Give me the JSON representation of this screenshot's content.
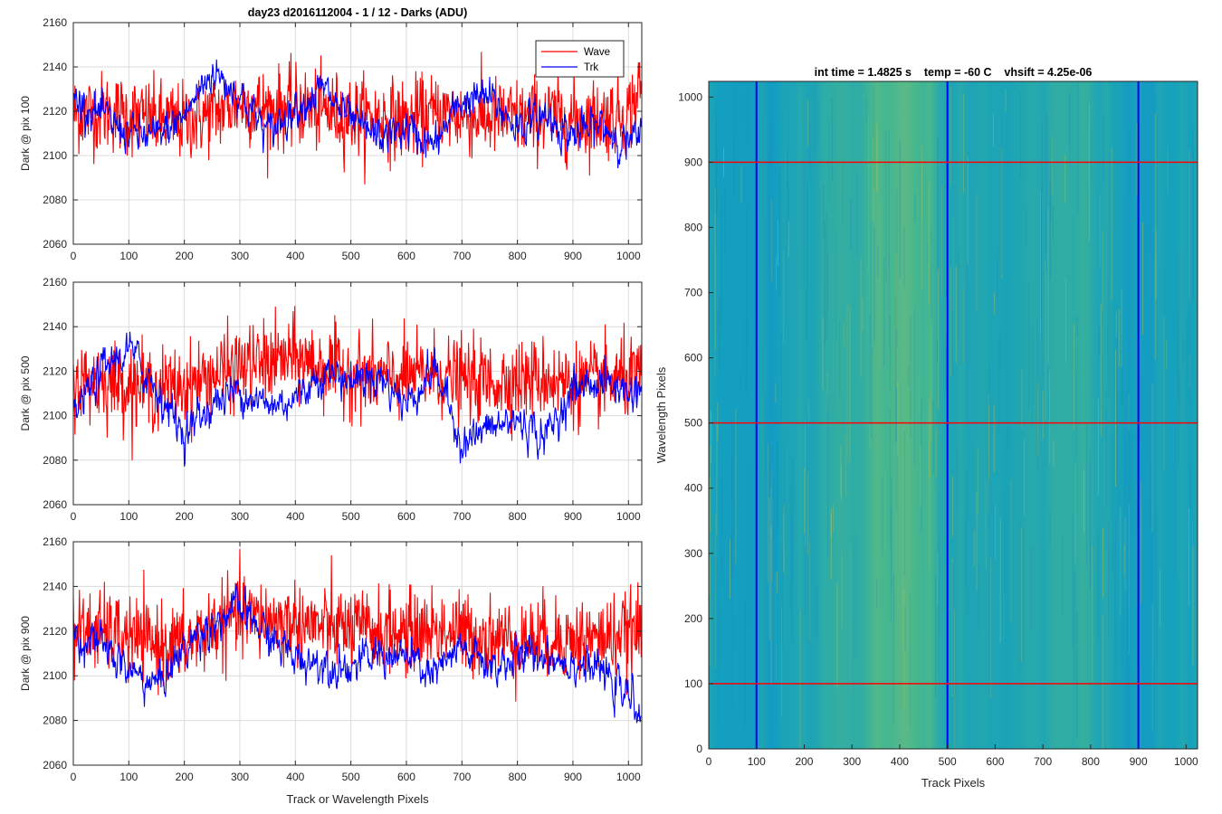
{
  "figure_title": "day23 d2016112004 - 1 / 12 - Darks (ADU)",
  "heatmap_title": "int time = 1.4825 s    temp = -60 C    vhsift = 4.25e-06",
  "colors": {
    "wave": "#ff0000",
    "trk": "#0000ff",
    "grid": "#dcdcdc",
    "axis": "#262626"
  },
  "chart_data": [
    {
      "type": "line",
      "ylabel": "Dark @ pix 100",
      "xlabel": "",
      "xlim": [
        0,
        1024
      ],
      "ylim": [
        2060,
        2160
      ],
      "xticks": [
        0,
        100,
        200,
        300,
        400,
        500,
        600,
        700,
        800,
        900,
        1000
      ],
      "yticks": [
        2060,
        2080,
        2100,
        2120,
        2140,
        2160
      ],
      "grid": true,
      "legend": {
        "position": "top-right",
        "entries": [
          "Wave",
          "Trk"
        ]
      },
      "series": [
        {
          "name": "Wave",
          "color": "#ff0000",
          "x": [
            0,
            50,
            100,
            150,
            200,
            250,
            300,
            350,
            400,
            450,
            500,
            550,
            600,
            650,
            700,
            750,
            800,
            850,
            900,
            950,
            1000,
            1023
          ],
          "y": [
            2119,
            2120,
            2118,
            2116,
            2115,
            2119,
            2124,
            2121,
            2122,
            2120,
            2118,
            2117,
            2116,
            2119,
            2118,
            2117,
            2117,
            2118,
            2116,
            2117,
            2119,
            2132
          ]
        },
        {
          "name": "Trk",
          "color": "#0000ff",
          "x": [
            0,
            50,
            100,
            150,
            200,
            250,
            300,
            350,
            400,
            450,
            500,
            550,
            600,
            650,
            700,
            750,
            800,
            850,
            900,
            950,
            1000,
            1023
          ],
          "y": [
            2126,
            2118,
            2110,
            2108,
            2118,
            2138,
            2128,
            2110,
            2122,
            2130,
            2115,
            2108,
            2112,
            2104,
            2125,
            2126,
            2113,
            2118,
            2109,
            2114,
            2105,
            2108
          ]
        }
      ]
    },
    {
      "type": "line",
      "ylabel": "Dark @ pix 500",
      "xlabel": "",
      "xlim": [
        0,
        1024
      ],
      "ylim": [
        2060,
        2160
      ],
      "xticks": [
        0,
        100,
        200,
        300,
        400,
        500,
        600,
        700,
        800,
        900,
        1000
      ],
      "yticks": [
        2060,
        2080,
        2100,
        2120,
        2140,
        2160
      ],
      "grid": true,
      "series": [
        {
          "name": "Wave",
          "color": "#ff0000",
          "x": [
            0,
            50,
            100,
            150,
            200,
            250,
            300,
            350,
            400,
            450,
            500,
            550,
            600,
            650,
            700,
            750,
            800,
            850,
            900,
            950,
            1000,
            1023
          ],
          "y": [
            2115,
            2116,
            2114,
            2112,
            2113,
            2118,
            2122,
            2124,
            2126,
            2122,
            2119,
            2117,
            2117,
            2119,
            2116,
            2115,
            2116,
            2117,
            2114,
            2115,
            2117,
            2115
          ]
        },
        {
          "name": "Trk",
          "color": "#0000ff",
          "x": [
            0,
            50,
            100,
            150,
            200,
            250,
            300,
            350,
            400,
            450,
            500,
            550,
            600,
            650,
            700,
            750,
            800,
            850,
            900,
            950,
            1000,
            1023
          ],
          "y": [
            2100,
            2120,
            2130,
            2112,
            2092,
            2105,
            2112,
            2104,
            2108,
            2120,
            2116,
            2118,
            2105,
            2122,
            2088,
            2094,
            2098,
            2090,
            2112,
            2116,
            2110,
            2113
          ]
        }
      ]
    },
    {
      "type": "line",
      "ylabel": "Dark @ pix 900",
      "xlabel": "Track or Wavelength Pixels",
      "xlim": [
        0,
        1024
      ],
      "ylim": [
        2060,
        2160
      ],
      "xticks": [
        0,
        100,
        200,
        300,
        400,
        500,
        600,
        700,
        800,
        900,
        1000
      ],
      "yticks": [
        2060,
        2080,
        2100,
        2120,
        2140,
        2160
      ],
      "grid": true,
      "series": [
        {
          "name": "Wave",
          "color": "#ff0000",
          "x": [
            0,
            50,
            100,
            150,
            200,
            250,
            300,
            350,
            400,
            450,
            500,
            550,
            600,
            650,
            700,
            750,
            800,
            850,
            900,
            950,
            1000,
            1023
          ],
          "y": [
            2120,
            2120,
            2117,
            2114,
            2114,
            2122,
            2127,
            2125,
            2124,
            2122,
            2121,
            2120,
            2119,
            2121,
            2119,
            2117,
            2116,
            2117,
            2116,
            2117,
            2119,
            2120
          ]
        },
        {
          "name": "Trk",
          "color": "#0000ff",
          "x": [
            0,
            50,
            100,
            150,
            200,
            250,
            300,
            350,
            400,
            450,
            500,
            550,
            600,
            650,
            700,
            750,
            800,
            850,
            900,
            950,
            1000,
            1023
          ],
          "y": [
            2118,
            2114,
            2102,
            2096,
            2112,
            2124,
            2130,
            2118,
            2108,
            2106,
            2104,
            2110,
            2108,
            2100,
            2112,
            2104,
            2108,
            2110,
            2106,
            2102,
            2090,
            2086
          ]
        }
      ]
    },
    {
      "type": "heatmap",
      "title": "int time = 1.4825 s    temp = -60 C    vhsift = 4.25e-06",
      "xlabel": "Track Pixels",
      "ylabel": "Wavelength Pixels",
      "xlim": [
        0,
        1024
      ],
      "ylim": [
        0,
        1024
      ],
      "xticks": [
        0,
        100,
        200,
        300,
        400,
        500,
        600,
        700,
        800,
        900,
        1000
      ],
      "yticks": [
        0,
        100,
        200,
        300,
        400,
        500,
        600,
        700,
        800,
        900,
        1000
      ],
      "colormap": "parula",
      "vertical_lines": {
        "color": "#0000ff",
        "x": [
          100,
          500,
          900
        ]
      },
      "horizontal_lines": {
        "color": "#ff0000",
        "y": [
          100,
          500,
          900
        ]
      }
    }
  ]
}
